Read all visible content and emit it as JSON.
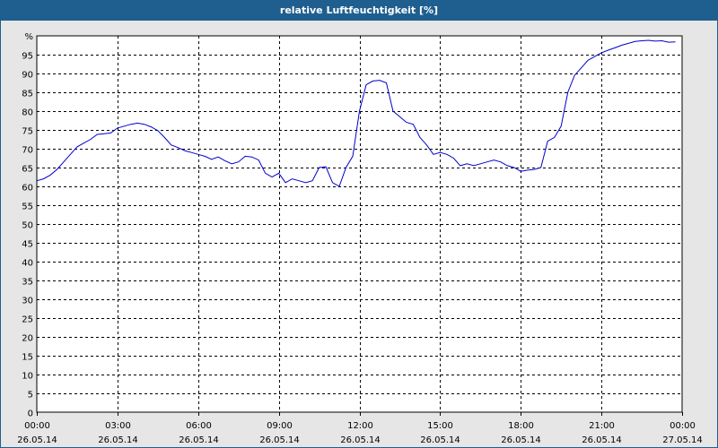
{
  "window": {
    "title": "relative Luftfeuchtigkeit [%]"
  },
  "colors": {
    "titlebar": "#1f5f8f",
    "line": "#0000cc"
  },
  "chart_data": {
    "type": "line",
    "title": "relative Luftfeuchtigkeit [%]",
    "ylabel": "%",
    "ylim": [
      0,
      100
    ],
    "y_ticks": [
      0,
      5,
      10,
      15,
      20,
      25,
      30,
      35,
      40,
      45,
      50,
      55,
      60,
      65,
      70,
      75,
      80,
      85,
      90,
      95
    ],
    "x_range_hours": [
      0,
      24
    ],
    "x_ticks": [
      {
        "time": "00:00",
        "date": "26.05.14"
      },
      {
        "time": "03:00",
        "date": "26.05.14"
      },
      {
        "time": "06:00",
        "date": "26.05.14"
      },
      {
        "time": "09:00",
        "date": "26.05.14"
      },
      {
        "time": "12:00",
        "date": "26.05.14"
      },
      {
        "time": "15:00",
        "date": "26.05.14"
      },
      {
        "time": "18:00",
        "date": "26.05.14"
      },
      {
        "time": "21:00",
        "date": "26.05.14"
      },
      {
        "time": "00:00",
        "date": "27.05.14"
      }
    ],
    "grid": true,
    "series": [
      {
        "x": [
          0,
          0.25,
          0.5,
          0.75,
          1.0,
          1.25,
          1.5,
          1.75,
          2.0,
          2.25,
          2.5,
          2.75,
          3.0,
          3.25,
          3.5,
          3.75,
          4.0,
          4.25,
          4.5,
          4.75,
          5.0,
          5.25,
          5.5,
          5.75,
          6.0,
          6.25,
          6.5,
          6.75,
          7.0,
          7.25,
          7.5,
          7.75,
          8.0,
          8.25,
          8.5,
          8.75,
          9.0,
          9.25,
          9.5,
          9.75,
          10.0,
          10.25,
          10.5,
          10.75,
          11.0,
          11.25,
          11.5,
          11.75,
          12.0,
          12.25,
          12.5,
          12.75,
          13.0,
          13.25,
          13.5,
          13.75,
          14.0,
          14.25,
          14.5,
          14.75,
          15.0,
          15.25,
          15.5,
          15.75,
          16.0,
          16.25,
          16.5,
          16.75,
          17.0,
          17.25,
          17.5,
          17.75,
          18.0,
          18.25,
          18.5,
          18.75,
          19.0,
          19.25,
          19.5,
          19.75,
          20.0,
          20.25,
          20.5,
          20.75,
          21.0,
          21.25,
          21.5,
          21.75,
          22.0,
          22.25,
          22.5,
          22.75,
          23.0,
          23.25,
          23.5,
          23.75
        ],
        "y": [
          61.5,
          62.0,
          63.0,
          64.5,
          66.5,
          68.5,
          70.5,
          71.5,
          72.5,
          73.8,
          74.0,
          74.2,
          75.5,
          76.0,
          76.5,
          76.8,
          76.5,
          75.8,
          74.8,
          73.0,
          71.0,
          70.3,
          69.5,
          69.0,
          68.5,
          68.0,
          67.2,
          67.8,
          66.8,
          66.0,
          66.5,
          68.0,
          67.8,
          67.0,
          63.5,
          62.5,
          63.5,
          61.0,
          62.0,
          61.5,
          61.0,
          61.5,
          65.0,
          65.2,
          61.0,
          60.0,
          65.0,
          68.0,
          80.0,
          87.0,
          88.0,
          88.2,
          87.5,
          80.0,
          78.5,
          77.0,
          76.5,
          73.0,
          71.0,
          68.5,
          69.0,
          68.5,
          67.5,
          65.5,
          66.0,
          65.5,
          66.0,
          66.5,
          67.0,
          66.5,
          65.5,
          65.0,
          64.0,
          64.3,
          64.5,
          65.0,
          72.0,
          73.0,
          76.0,
          85.0,
          89.5,
          91.5,
          93.5,
          94.5,
          95.5,
          96.2,
          96.8,
          97.5,
          98.0,
          98.5,
          98.7,
          98.8,
          98.6,
          98.7,
          98.3,
          98.4
        ]
      }
    ]
  }
}
